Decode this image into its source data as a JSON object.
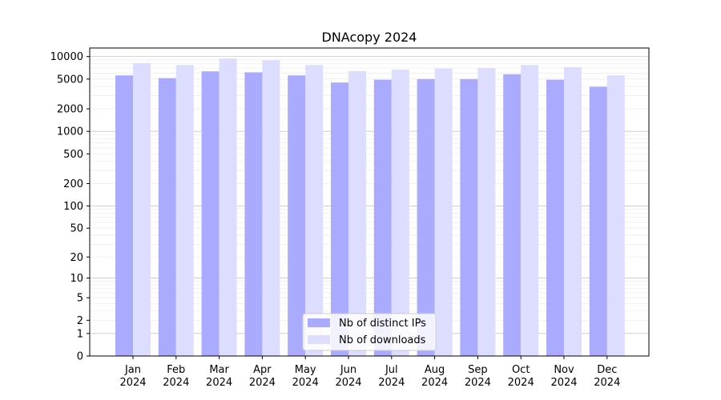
{
  "chart_data": {
    "type": "bar",
    "title": "DNAcopy 2024",
    "xlabel": "",
    "ylabel": "",
    "y_scale": "symlog",
    "ylim": [
      0,
      13000
    ],
    "grid": true,
    "legend_position": "bottom-center",
    "categories": [
      {
        "month": "Jan",
        "year": "2024"
      },
      {
        "month": "Feb",
        "year": "2024"
      },
      {
        "month": "Mar",
        "year": "2024"
      },
      {
        "month": "Apr",
        "year": "2024"
      },
      {
        "month": "May",
        "year": "2024"
      },
      {
        "month": "Jun",
        "year": "2024"
      },
      {
        "month": "Jul",
        "year": "2024"
      },
      {
        "month": "Aug",
        "year": "2024"
      },
      {
        "month": "Sep",
        "year": "2024"
      },
      {
        "month": "Oct",
        "year": "2024"
      },
      {
        "month": "Nov",
        "year": "2024"
      },
      {
        "month": "Dec",
        "year": "2024"
      }
    ],
    "y_ticks": [
      {
        "value": 0,
        "label": "0"
      },
      {
        "value": 1,
        "label": "1"
      },
      {
        "value": 2,
        "label": "2"
      },
      {
        "value": 5,
        "label": "5"
      },
      {
        "value": 10,
        "label": "10"
      },
      {
        "value": 20,
        "label": "20"
      },
      {
        "value": 50,
        "label": "50"
      },
      {
        "value": 100,
        "label": "100"
      },
      {
        "value": 200,
        "label": "200"
      },
      {
        "value": 500,
        "label": "500"
      },
      {
        "value": 1000,
        "label": "1000"
      },
      {
        "value": 2000,
        "label": "2000"
      },
      {
        "value": 5000,
        "label": "5000"
      },
      {
        "value": 10000,
        "label": "10000"
      }
    ],
    "series": [
      {
        "name": "Nb of distinct IPs",
        "color": "#aaaaff",
        "values": [
          5600,
          5150,
          6350,
          6150,
          5600,
          4500,
          4900,
          5000,
          5000,
          5800,
          4900,
          3950
        ]
      },
      {
        "name": "Nb of downloads",
        "color": "#ddddff",
        "values": [
          8200,
          7700,
          9400,
          8900,
          7700,
          6400,
          6700,
          6900,
          7000,
          7700,
          7200,
          5600
        ]
      }
    ]
  }
}
